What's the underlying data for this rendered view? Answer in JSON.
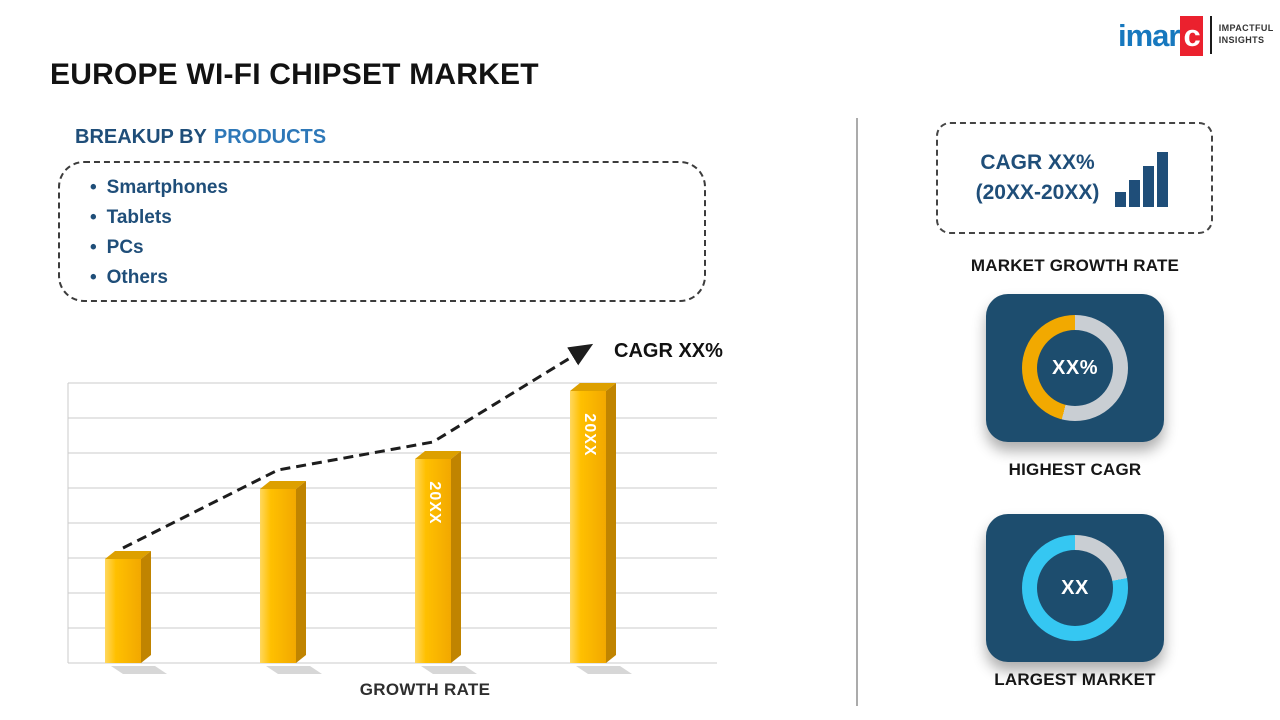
{
  "header": {
    "title": "EUROPE WI-FI CHIPSET MARKET",
    "logo": {
      "brand_prefix": "imar",
      "brand_suffix": "c",
      "tagline_top": "IMPACTFUL",
      "tagline_bottom": "INSIGHTS"
    }
  },
  "breakup": {
    "heading_prefix": "BREAKUP BY",
    "heading_highlight": "PRODUCTS",
    "items": [
      "Smartphones",
      "Tablets",
      "PCs",
      "Others"
    ]
  },
  "chart_data": {
    "type": "bar",
    "title": "",
    "xlabel": "GROWTH RATE",
    "ylabel": "",
    "categories": [
      "",
      "",
      "20XX",
      "20XX"
    ],
    "values": [
      37,
      62,
      73,
      97
    ],
    "ylim": [
      0,
      100
    ],
    "grid": true,
    "legend": false,
    "annotation": "CAGR XX%",
    "trend": [
      41,
      69,
      79,
      113
    ],
    "bar_colors": {
      "light": "#FFD75E",
      "main": "#FFC000",
      "dark": "#F2A800",
      "top": "#DDA000",
      "side": "#C08400"
    }
  },
  "sidebar": {
    "cagr_card": {
      "line1": "CAGR XX%",
      "line2": "(20XX-20XX)",
      "caption": "MARKET GROWTH RATE"
    },
    "highest_cagr": {
      "value": "XX%",
      "caption": "HIGHEST CAGR",
      "ring": {
        "percent": 46,
        "color": "#F2A900",
        "track": "#C9CED3"
      }
    },
    "largest_market": {
      "value": "XX",
      "caption": "LARGEST MARKET",
      "ring": {
        "percent": 78,
        "color": "#35C7F2",
        "track": "#C9CED3"
      }
    }
  },
  "colors": {
    "navy": "#1F4E79",
    "accent_blue": "#2E78B8",
    "tile_background": "#1D4D6E",
    "brand_blue": "#1778BE",
    "brand_red": "#EB212E"
  }
}
